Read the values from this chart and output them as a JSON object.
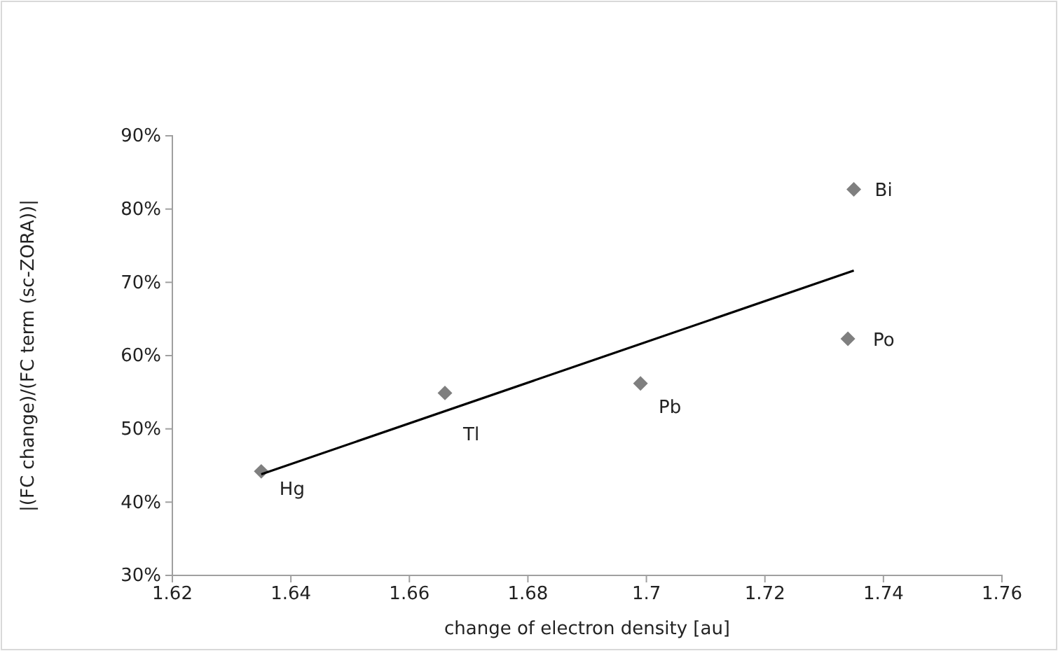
{
  "chart_data": {
    "type": "scatter",
    "xlabel": "change of electron density [au]",
    "ylabel": "|(FC change)/(FC term (sc-ZORA))|",
    "xlim": [
      1.62,
      1.76
    ],
    "xticks": [
      1.62,
      1.64,
      1.66,
      1.68,
      1.7,
      1.72,
      1.74,
      1.76
    ],
    "ylim": [
      30,
      90
    ],
    "yticks": [
      {
        "value": 30,
        "label": "30%"
      },
      {
        "value": 40,
        "label": "40%"
      },
      {
        "value": 50,
        "label": "50%"
      },
      {
        "value": 60,
        "label": "60%"
      },
      {
        "value": 70,
        "label": "70%"
      },
      {
        "value": 80,
        "label": "80%"
      },
      {
        "value": 90,
        "label": "90%"
      }
    ],
    "grid": false,
    "marker": "diamond",
    "series": [
      {
        "color": "#7f7f7f",
        "x": [
          1.635,
          1.666,
          1.699,
          1.734,
          1.735
        ],
        "values": [
          44.2,
          54.9,
          56.2,
          62.3,
          82.7
        ]
      },
      {
        "type": "line",
        "color": "#000000",
        "marker": "none",
        "x": [
          1.635,
          1.735
        ],
        "values": [
          43.8,
          71.6
        ]
      }
    ],
    "annotations": [
      {
        "text": "Hg",
        "x": 1.635,
        "y": 44.2
      },
      {
        "text": "Tl",
        "x": 1.666,
        "y": 54.9
      },
      {
        "text": "Pb",
        "x": 1.699,
        "y": 56.2
      },
      {
        "text": "Po",
        "x": 1.734,
        "y": 62.3
      },
      {
        "text": "Bi",
        "x": 1.735,
        "y": 82.7
      }
    ]
  }
}
